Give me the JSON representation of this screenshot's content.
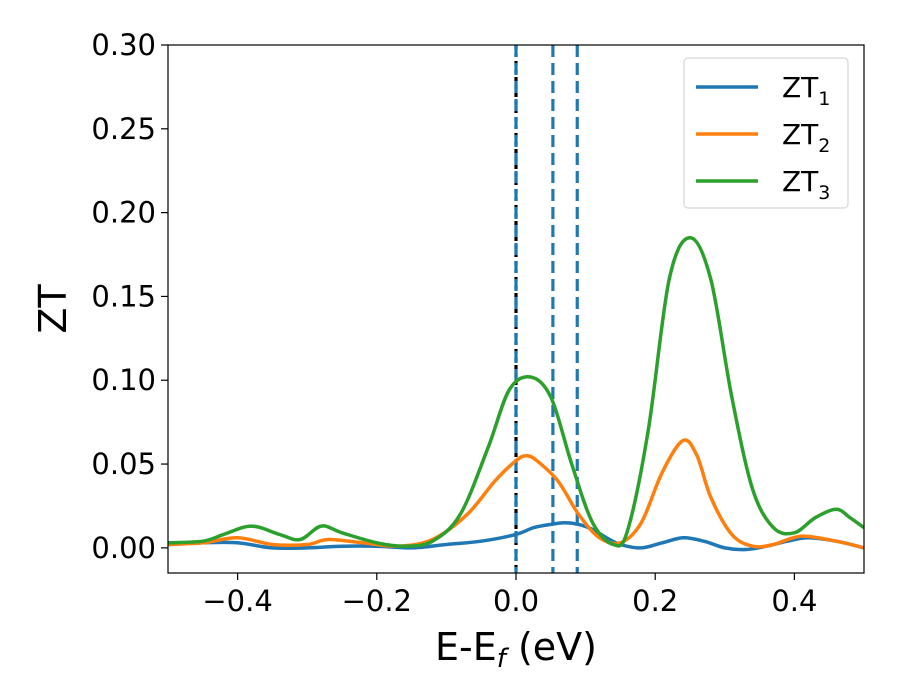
{
  "chart_data": {
    "type": "line",
    "title": "",
    "xlabel_main": "E-E",
    "xlabel_sub": "f",
    "xlabel_unit": " (eV)",
    "ylabel": "ZT",
    "xlim": [
      -0.5,
      0.5
    ],
    "ylim": [
      -0.015,
      0.3
    ],
    "xticks": [
      -0.4,
      -0.2,
      0.0,
      0.2,
      0.4
    ],
    "xtick_labels": [
      "−0.4",
      "−0.2",
      "0.0",
      "0.2",
      "0.4"
    ],
    "yticks": [
      0.0,
      0.05,
      0.1,
      0.15,
      0.2,
      0.25,
      0.3
    ],
    "ytick_labels": [
      "0.00",
      "0.05",
      "0.10",
      "0.15",
      "0.20",
      "0.25",
      "0.30"
    ],
    "grid": false,
    "legend_position": "top-right",
    "vlines": [
      {
        "x": 0.0,
        "color": "#000000",
        "style": "dotted"
      },
      {
        "x": 0.0,
        "color": "#1f77b4",
        "style": "dashed"
      },
      {
        "x": 0.053,
        "color": "#1f77b4",
        "style": "dashed"
      },
      {
        "x": 0.088,
        "color": "#1f77b4",
        "style": "dashed"
      }
    ],
    "series": [
      {
        "name_main": "ZT",
        "name_sub": "1",
        "color": "#1f77b4",
        "x": [
          -0.5,
          -0.45,
          -0.4,
          -0.35,
          -0.3,
          -0.25,
          -0.2,
          -0.15,
          -0.1,
          -0.05,
          0.0,
          0.025,
          0.05,
          0.07,
          0.09,
          0.11,
          0.13,
          0.15,
          0.18,
          0.21,
          0.24,
          0.27,
          0.3,
          0.33,
          0.36,
          0.39,
          0.42,
          0.46,
          0.5
        ],
        "y": [
          0.002,
          0.003,
          0.003,
          0.0,
          0.0,
          0.001,
          0.001,
          0.0,
          0.002,
          0.004,
          0.008,
          0.012,
          0.014,
          0.015,
          0.014,
          0.011,
          0.006,
          0.002,
          0.0,
          0.003,
          0.006,
          0.004,
          0.0,
          -0.001,
          0.001,
          0.004,
          0.006,
          0.004,
          0.0
        ]
      },
      {
        "name_main": "ZT",
        "name_sub": "2",
        "color": "#ff7f0e",
        "x": [
          -0.5,
          -0.45,
          -0.4,
          -0.35,
          -0.3,
          -0.27,
          -0.22,
          -0.17,
          -0.12,
          -0.07,
          -0.03,
          0.0,
          0.015,
          0.03,
          0.06,
          0.09,
          0.12,
          0.15,
          0.18,
          0.21,
          0.24,
          0.26,
          0.28,
          0.31,
          0.34,
          0.37,
          0.41,
          0.46,
          0.5
        ],
        "y": [
          0.002,
          0.003,
          0.006,
          0.002,
          0.002,
          0.005,
          0.003,
          0.001,
          0.005,
          0.02,
          0.04,
          0.052,
          0.055,
          0.052,
          0.04,
          0.02,
          0.006,
          0.003,
          0.015,
          0.045,
          0.064,
          0.055,
          0.03,
          0.008,
          0.001,
          0.002,
          0.007,
          0.004,
          0.0
        ]
      },
      {
        "name_main": "ZT",
        "name_sub": "3",
        "color": "#2ca02c",
        "x": [
          -0.5,
          -0.45,
          -0.42,
          -0.38,
          -0.34,
          -0.31,
          -0.28,
          -0.25,
          -0.2,
          -0.16,
          -0.12,
          -0.08,
          -0.04,
          -0.01,
          0.02,
          0.05,
          0.08,
          0.11,
          0.14,
          0.16,
          0.19,
          0.22,
          0.25,
          0.28,
          0.31,
          0.34,
          0.37,
          0.4,
          0.43,
          0.46,
          0.48,
          0.5
        ],
        "y": [
          0.003,
          0.004,
          0.008,
          0.013,
          0.008,
          0.005,
          0.013,
          0.009,
          0.003,
          0.001,
          0.004,
          0.02,
          0.06,
          0.094,
          0.102,
          0.09,
          0.05,
          0.015,
          0.002,
          0.01,
          0.07,
          0.16,
          0.185,
          0.16,
          0.09,
          0.035,
          0.012,
          0.009,
          0.018,
          0.023,
          0.018,
          0.012
        ]
      }
    ]
  }
}
